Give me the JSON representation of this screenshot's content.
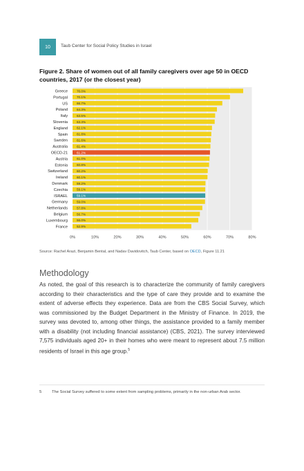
{
  "header": {
    "page_number": "10",
    "running_head": "Taub Center for Social Policy Studies in Israel"
  },
  "figure": {
    "title": "Figure 2. Share of women out of all family caregivers over age 50 in OECD countries, 2017 (or the closest year)"
  },
  "chart_data": {
    "type": "bar",
    "orientation": "horizontal",
    "categories": [
      "Greece",
      "Portugal",
      "US",
      "Poland",
      "Italy",
      "Slovenia",
      "England",
      "Spain",
      "Sweden",
      "Australia",
      "OECD-21",
      "Austria",
      "Estonia",
      "Switzerland",
      "Ireland",
      "Denmark",
      "Czechia",
      "ISRAEL",
      "Germany",
      "Netherlands",
      "Belgium",
      "Luxembourg",
      "France"
    ],
    "values": [
      76.0,
      70.1,
      66.7,
      64.3,
      63.5,
      63.3,
      62.1,
      61.8,
      61.6,
      61.4,
      61.2,
      61.0,
      60.8,
      60.2,
      60.1,
      59.2,
      59.1,
      59.1,
      59.0,
      57.8,
      56.7,
      56.0,
      52.9
    ],
    "value_labels": [
      "76.0%",
      "70.1%",
      "66.7%",
      "64.3%",
      "63.5%",
      "63.3%",
      "62.1%",
      "61.8%",
      "61.6%",
      "61.4%",
      "61.2%",
      "61.0%",
      "60.8%",
      "60.2%",
      "60.1%",
      "59.2%",
      "59.1%",
      "59.1%",
      "59.0%",
      "57.8%",
      "56.7%",
      "56.0%",
      "52.9%"
    ],
    "xlim": [
      0,
      80
    ],
    "x_ticks": [
      "0%",
      "10%",
      "20%",
      "30%",
      "40%",
      "50%",
      "60%",
      "70%",
      "80%"
    ],
    "grid": true,
    "colors": {
      "default": "#f2d21d",
      "OECD-21": "#e5552a",
      "ISRAEL": "#3a9ca6",
      "background": "#ececec"
    }
  },
  "source": {
    "prefix": "Source: Rachel Arazi, Benjamin Bental, and Nadav Davidovitch, Taub Center, based on ",
    "link": "OECD",
    "suffix": ", Figure 11.21"
  },
  "section": {
    "heading": "Methodology",
    "paragraph": "As noted, the goal of this research is to characterize the community of family caregivers according to their characteristics and the type of care they provide and to examine the extent of adverse effects they experience. Data are from the CBS Social Survey, which was commissioned by the Budget Department in the Ministry of Finance. In 2019, the survey was devoted to, among other things, the assistance provided to a family member with a disability (not including financial assistance) (CBS, 2021). The survey interviewed 7,575 individuals aged 20+ in their homes who were meant to represent about 7.5 million residents of Israel in this age group.",
    "footnote_ref": "5"
  },
  "footnote": {
    "number": "5",
    "text": "The Social Survey suffered to some extent from sampling problems, primarily in the non-urban Arab sector."
  }
}
